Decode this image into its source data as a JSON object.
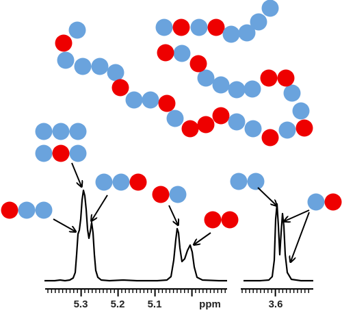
{
  "colors": {
    "blue": "#6aa3dd",
    "red": "#ee0000",
    "ink": "#000000"
  },
  "polymer": {
    "description_sequence": "visual chain of blue and red beads (copolymer)"
  },
  "motifs": {
    "bbb": [
      "blue",
      "blue",
      "blue"
    ],
    "brb": [
      "blue",
      "red",
      "blue"
    ],
    "bbr": [
      "blue",
      "blue",
      "red"
    ],
    "rbb": [
      "red",
      "blue",
      "blue"
    ],
    "rb": [
      "red",
      "blue"
    ],
    "rr": [
      "red",
      "red"
    ],
    "bb": [
      "blue",
      "blue"
    ],
    "br": [
      "blue",
      "red"
    ]
  },
  "axis_left": {
    "ticks": [
      "5.3",
      "5.2",
      "5.1"
    ],
    "unit": "ppm"
  },
  "axis_right": {
    "ticks": [
      "3.6"
    ]
  }
}
